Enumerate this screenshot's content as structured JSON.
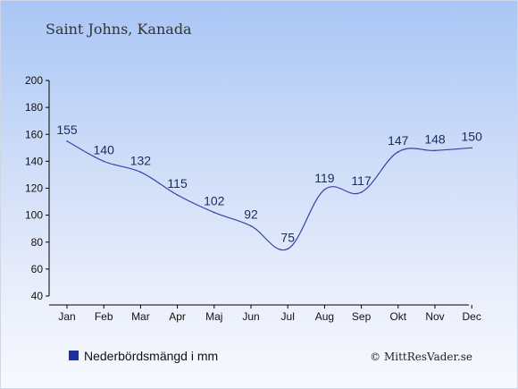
{
  "chart_data": {
    "type": "line",
    "title": "Saint Johns, Kanada",
    "categories": [
      "Jan",
      "Feb",
      "Mar",
      "Apr",
      "Maj",
      "Jun",
      "Jul",
      "Aug",
      "Sep",
      "Okt",
      "Nov",
      "Dec"
    ],
    "series": [
      {
        "name": "Nederbördsmängd i mm",
        "values": [
          155,
          140,
          132,
          115,
          102,
          92,
          75,
          119,
          117,
          147,
          148,
          150
        ]
      }
    ],
    "ylim": [
      40,
      200
    ],
    "yticks": [
      40,
      60,
      80,
      100,
      120,
      140,
      160,
      180,
      200
    ],
    "grid": false,
    "legend": "bottom-left",
    "line_color": "#3344aa",
    "legend_color": "#1f2fa0"
  },
  "footer": {
    "copyright": "© MittResVader.se"
  }
}
